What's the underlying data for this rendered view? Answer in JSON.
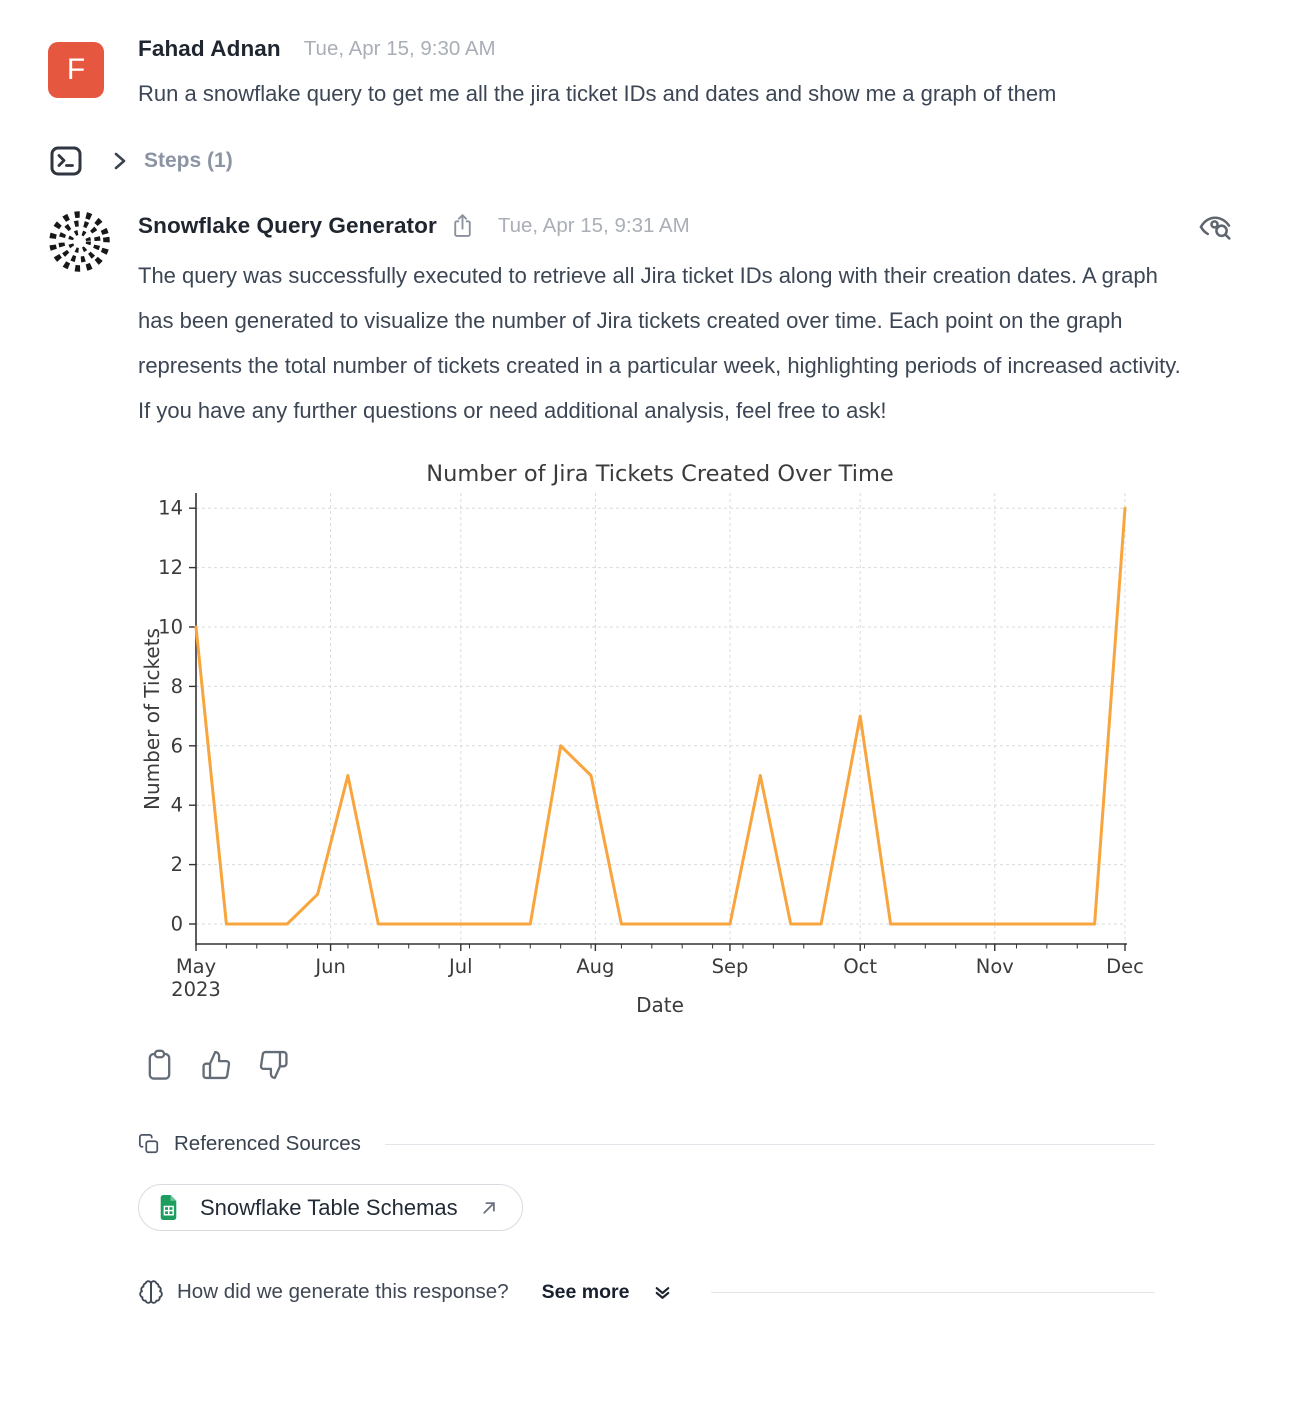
{
  "user_message": {
    "avatar_initial": "F",
    "avatar_color": "#e5573f",
    "name": "Fahad Adnan",
    "timestamp": "Tue, Apr 15, 9:30 AM",
    "text": "Run a snowflake query to get me all the jira ticket IDs and dates and show me a graph of them"
  },
  "steps": {
    "label": "Steps (1)"
  },
  "assistant_message": {
    "name": "Snowflake Query Generator",
    "timestamp": "Tue, Apr 15, 9:31 AM",
    "body": "The query was successfully executed to retrieve all Jira ticket IDs along with their creation dates. A graph has been generated to visualize the number of Jira tickets created over time. Each point on the graph represents the total number of tickets created in a particular week, highlighting periods of increased activity. If you have any further questions or need additional analysis, feel free to ask!"
  },
  "chart_data": {
    "type": "line",
    "title": "Number of Jira Tickets Created Over Time",
    "xlabel": "Date",
    "ylabel": "Number of Tickets",
    "line_color": "#f8a53e",
    "grid": true,
    "legend": "none",
    "ylim": [
      0,
      14
    ],
    "y_ticks": [
      0,
      2,
      4,
      6,
      8,
      10,
      12,
      14
    ],
    "x_max_day": 214,
    "x_minor_tick_interval_days": 7,
    "x_ticks": [
      {
        "label": "May",
        "day": 0,
        "year_label": "2023"
      },
      {
        "label": "Jun",
        "day": 31
      },
      {
        "label": "Jul",
        "day": 61
      },
      {
        "label": "Aug",
        "day": 92
      },
      {
        "label": "Sep",
        "day": 123
      },
      {
        "label": "Oct",
        "day": 153
      },
      {
        "label": "Nov",
        "day": 184
      },
      {
        "label": "Dec",
        "day": 214
      }
    ],
    "series": [
      {
        "name": "Jira tickets created per week",
        "points": [
          {
            "date": "2023-05-01",
            "day": 0,
            "value": 10
          },
          {
            "date": "2023-05-08",
            "day": 7,
            "value": 0
          },
          {
            "date": "2023-05-22",
            "day": 21,
            "value": 0
          },
          {
            "date": "2023-05-29",
            "day": 28,
            "value": 1
          },
          {
            "date": "2023-06-05",
            "day": 35,
            "value": 5
          },
          {
            "date": "2023-06-12",
            "day": 42,
            "value": 0
          },
          {
            "date": "2023-07-17",
            "day": 77,
            "value": 0
          },
          {
            "date": "2023-07-24",
            "day": 84,
            "value": 6
          },
          {
            "date": "2023-07-31",
            "day": 91,
            "value": 5
          },
          {
            "date": "2023-08-07",
            "day": 98,
            "value": 0
          },
          {
            "date": "2023-09-01",
            "day": 123,
            "value": 0
          },
          {
            "date": "2023-09-08",
            "day": 130,
            "value": 5
          },
          {
            "date": "2023-09-15",
            "day": 137,
            "value": 0
          },
          {
            "date": "2023-09-22",
            "day": 144,
            "value": 0
          },
          {
            "date": "2023-10-01",
            "day": 153,
            "value": 7
          },
          {
            "date": "2023-10-08",
            "day": 160,
            "value": 0
          },
          {
            "date": "2023-11-24",
            "day": 207,
            "value": 0
          },
          {
            "date": "2023-12-01",
            "day": 214,
            "value": 14
          }
        ]
      }
    ]
  },
  "actions": {
    "icons": [
      "clipboard-copy",
      "thumbs-up",
      "thumbs-down"
    ]
  },
  "referenced_sources": {
    "heading": "Referenced Sources",
    "sources": [
      {
        "label": "Snowflake Table Schemas",
        "icon": "spreadsheet"
      }
    ]
  },
  "footer": {
    "question": "How did we generate this response?",
    "see_more_label": "See more"
  }
}
